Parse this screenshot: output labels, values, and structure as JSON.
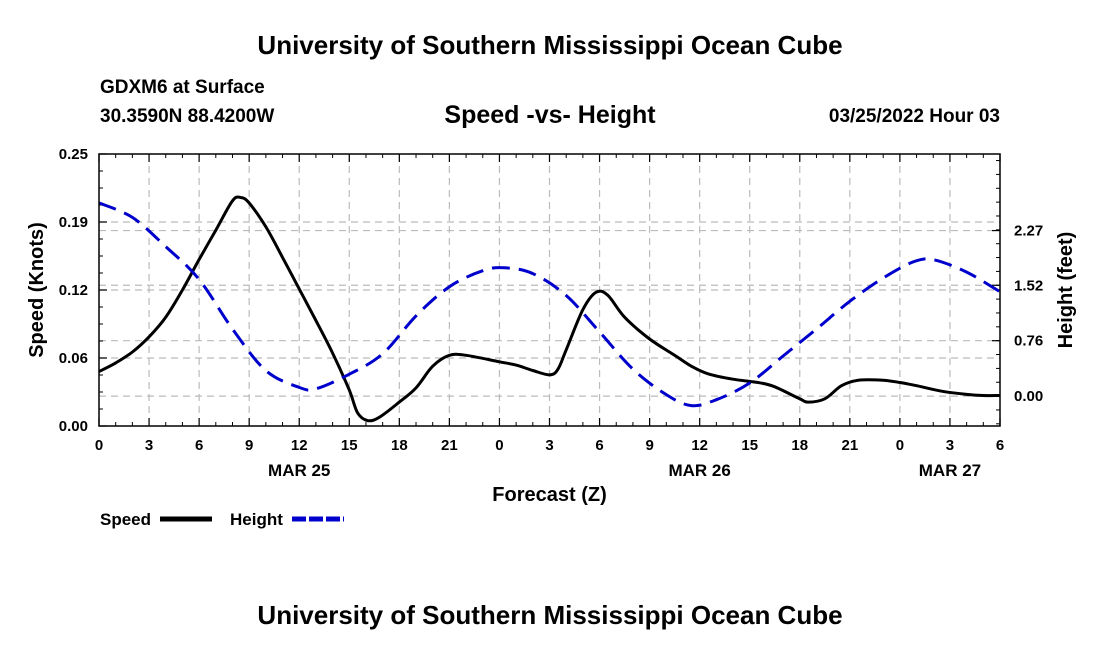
{
  "header": {
    "title_top": "University of Southern Mississippi Ocean Cube",
    "station": "GDXM6 at Surface",
    "coords": "30.3590N  88.4200W",
    "plot_title": "Speed -vs- Height",
    "datetime": "03/25/2022 Hour 03",
    "title_bottom": "University of Southern Mississippi Ocean Cube"
  },
  "chart_data": {
    "type": "line",
    "title": "Speed -vs- Height",
    "xlabel": "Forecast (Z)",
    "ylabel_left": "Speed (Knots)",
    "ylabel_right": "Height (feet)",
    "x_range": [
      0,
      54
    ],
    "x_ticks": [
      "0",
      "3",
      "6",
      "9",
      "12",
      "15",
      "18",
      "21",
      "0",
      "3",
      "6",
      "9",
      "12",
      "15",
      "18",
      "21",
      "0",
      "3",
      "6"
    ],
    "date_labels": [
      {
        "x": 12,
        "label": "MAR 25"
      },
      {
        "x": 36,
        "label": "MAR 26"
      },
      {
        "x": 51,
        "label": "MAR 27"
      }
    ],
    "ylim_left": [
      0,
      0.25
    ],
    "left_ticks": [
      {
        "value": 0.0,
        "label": "0.00"
      },
      {
        "value": 0.0625,
        "label": "0.06"
      },
      {
        "value": 0.125,
        "label": "0.12"
      },
      {
        "value": 0.1875,
        "label": "0.19"
      },
      {
        "value": 0.25,
        "label": "0.25"
      }
    ],
    "ylim_right": [
      -0.41,
      3.32
    ],
    "right_ticks": [
      {
        "value": 0.0,
        "label": "0.00"
      },
      {
        "value": 0.76,
        "label": "0.76"
      },
      {
        "value": 1.52,
        "label": "1.52"
      },
      {
        "value": 2.27,
        "label": "2.27"
      }
    ],
    "grid": true,
    "series": [
      {
        "name": "Speed",
        "axis": "left",
        "color": "#000000",
        "dash": "solid",
        "points": [
          [
            0,
            0.05
          ],
          [
            1,
            0.058
          ],
          [
            2,
            0.068
          ],
          [
            3,
            0.082
          ],
          [
            4,
            0.1
          ],
          [
            5,
            0.125
          ],
          [
            6,
            0.153
          ],
          [
            7,
            0.18
          ],
          [
            8,
            0.207
          ],
          [
            8.5,
            0.21
          ],
          [
            9,
            0.205
          ],
          [
            10,
            0.183
          ],
          [
            11,
            0.155
          ],
          [
            12,
            0.126
          ],
          [
            13,
            0.097
          ],
          [
            14,
            0.067
          ],
          [
            15,
            0.033
          ],
          [
            15.5,
            0.012
          ],
          [
            16.1,
            0.005
          ],
          [
            16.8,
            0.008
          ],
          [
            18,
            0.022
          ],
          [
            19,
            0.035
          ],
          [
            20,
            0.055
          ],
          [
            21,
            0.065
          ],
          [
            22,
            0.065
          ],
          [
            24,
            0.059
          ],
          [
            25,
            0.056
          ],
          [
            26,
            0.051
          ],
          [
            27,
            0.047
          ],
          [
            27.5,
            0.052
          ],
          [
            28,
            0.07
          ],
          [
            29,
            0.107
          ],
          [
            29.8,
            0.123
          ],
          [
            30.5,
            0.12
          ],
          [
            31.5,
            0.1
          ],
          [
            33,
            0.08
          ],
          [
            34.5,
            0.065
          ],
          [
            35.5,
            0.055
          ],
          [
            36.5,
            0.048
          ],
          [
            38,
            0.043
          ],
          [
            39.5,
            0.04
          ],
          [
            40.5,
            0.036
          ],
          [
            42,
            0.025
          ],
          [
            42.5,
            0.022
          ],
          [
            43.5,
            0.025
          ],
          [
            44.5,
            0.037
          ],
          [
            45.5,
            0.042
          ],
          [
            47,
            0.042
          ],
          [
            48,
            0.04
          ],
          [
            49,
            0.037
          ],
          [
            50.5,
            0.032
          ],
          [
            52,
            0.029
          ],
          [
            53,
            0.028
          ],
          [
            54,
            0.028
          ]
        ]
      },
      {
        "name": "Height",
        "axis": "right",
        "color": "#0000cc",
        "dash": "dashed",
        "points": [
          [
            0,
            2.65
          ],
          [
            2,
            2.45
          ],
          [
            4,
            2.05
          ],
          [
            6,
            1.6
          ],
          [
            8,
            0.92
          ],
          [
            10,
            0.35
          ],
          [
            12,
            0.12
          ],
          [
            13,
            0.1
          ],
          [
            15,
            0.3
          ],
          [
            17,
            0.58
          ],
          [
            19,
            1.1
          ],
          [
            21,
            1.5
          ],
          [
            23,
            1.72
          ],
          [
            24.3,
            1.76
          ],
          [
            26,
            1.68
          ],
          [
            28,
            1.38
          ],
          [
            30,
            0.88
          ],
          [
            32,
            0.37
          ],
          [
            34,
            0.02
          ],
          [
            35.5,
            -0.13
          ],
          [
            37,
            -0.05
          ],
          [
            39,
            0.18
          ],
          [
            41,
            0.55
          ],
          [
            43,
            0.92
          ],
          [
            45,
            1.3
          ],
          [
            47,
            1.62
          ],
          [
            48.8,
            1.84
          ],
          [
            50,
            1.87
          ],
          [
            52,
            1.7
          ],
          [
            54,
            1.43
          ]
        ]
      }
    ]
  }
}
